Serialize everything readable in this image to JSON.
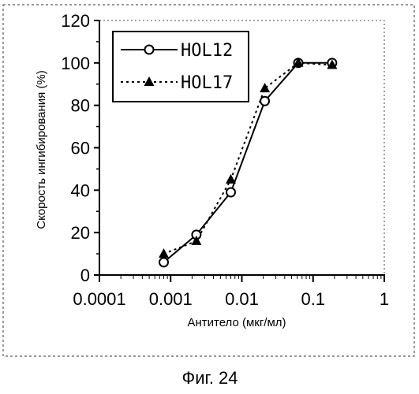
{
  "chart_data": {
    "type": "line",
    "xscale": "log",
    "x_ticks": [
      0.0001,
      0.001,
      0.01,
      0.1,
      1
    ],
    "x_tick_labels": [
      "0.0001",
      "0.001",
      "0.01",
      "0.1",
      "1"
    ],
    "y_ticks": [
      0,
      20,
      40,
      60,
      80,
      100,
      120
    ],
    "y_tick_labels": [
      "0",
      "20",
      "40",
      "60",
      "80",
      "100",
      "120"
    ],
    "xlim": [
      0.0001,
      1
    ],
    "ylim": [
      0,
      120
    ],
    "xlabel": "Антитело (мкг/мл)",
    "ylabel": "Скорость ингибирования (%)",
    "legend_position": "top-left",
    "grid": false,
    "series": [
      {
        "name": "HOL12",
        "marker": "open-circle",
        "line_style": "solid",
        "color": "#000000",
        "x": [
          0.0008,
          0.0023,
          0.007,
          0.021,
          0.062,
          0.185
        ],
        "y": [
          6,
          19,
          39,
          82,
          100,
          100
        ]
      },
      {
        "name": "HOL17",
        "marker": "filled-triangle",
        "line_style": "dotted",
        "color": "#000000",
        "x": [
          0.0008,
          0.0023,
          0.007,
          0.021,
          0.062,
          0.185
        ],
        "y": [
          10,
          16,
          45,
          88,
          100,
          99
        ]
      }
    ]
  },
  "caption": "Фиг. 24"
}
